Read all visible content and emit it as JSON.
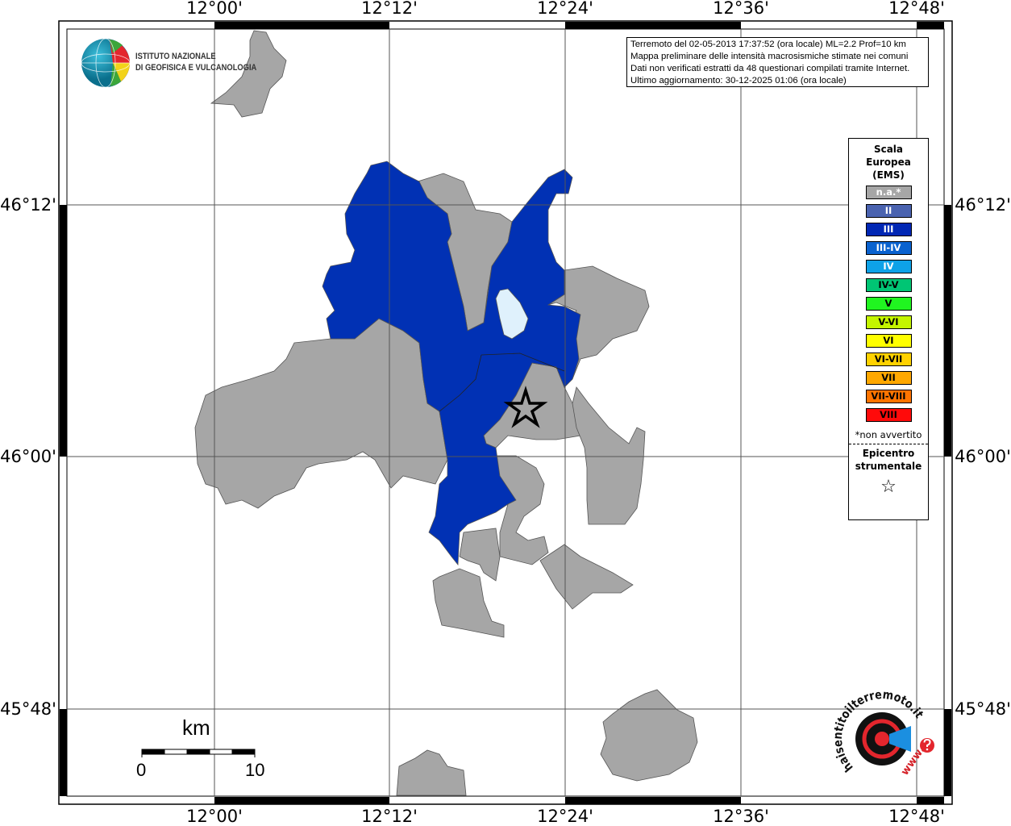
{
  "map": {
    "lon_labels": [
      "12°00'",
      "12°12'",
      "12°24'",
      "12°36'",
      "12°48'"
    ],
    "lat_labels": [
      "46°12'",
      "46°00'",
      "45°48'"
    ],
    "colors": {
      "not_felt": "#a6a6a6",
      "intensity_III": "#0131b4",
      "lake": "#dff1fc",
      "background": "#ffffff"
    },
    "epicenter_icon": "star-icon"
  },
  "info": {
    "line1": "Terremoto del 02-05-2013 17:37:52 (ora locale) ML=2.2 Prof=10 km",
    "line2": "Mappa preliminare delle intensità macrosismiche stimate nei comuni",
    "line3": "Dati non verificati estratti da 48 questionari compilati tramite Internet.",
    "line4": "Ultimo aggiornamento: 30-12-2025 01:06 (ora locale)"
  },
  "legend": {
    "title1": "Scala",
    "title2": "Europea",
    "title3": "(EMS)",
    "items": [
      {
        "label": "n.a.*",
        "color": "#a6a6a6",
        "text_color": "#ffffff"
      },
      {
        "label": "II",
        "color": "#4a63b0",
        "text_color": "#ffffff"
      },
      {
        "label": "III",
        "color": "#0127b4",
        "text_color": "#ffffff"
      },
      {
        "label": "III-IV",
        "color": "#0a62cf",
        "text_color": "#ffffff"
      },
      {
        "label": "IV",
        "color": "#0ea2e8",
        "text_color": "#ffffff"
      },
      {
        "label": "IV-V",
        "color": "#00c574",
        "text_color": "#000000"
      },
      {
        "label": "V",
        "color": "#20f520",
        "text_color": "#000000"
      },
      {
        "label": "V-VI",
        "color": "#c4f500",
        "text_color": "#000000"
      },
      {
        "label": "VI",
        "color": "#ffff00",
        "text_color": "#000000"
      },
      {
        "label": "VI-VII",
        "color": "#ffd200",
        "text_color": "#000000"
      },
      {
        "label": "VII",
        "color": "#ffa800",
        "text_color": "#000000"
      },
      {
        "label": "VII-VIII",
        "color": "#ff7400",
        "text_color": "#000000"
      },
      {
        "label": "VIII",
        "color": "#ff0a0a",
        "text_color": "#000000"
      }
    ],
    "note": "*non avvertito",
    "epicenter1": "Epicentro",
    "epicenter2": "strumentale",
    "epicenter_symbol": "☆"
  },
  "scalebar": {
    "unit": "km",
    "min": "0",
    "max": "10"
  },
  "logos": {
    "ingv_line1": "ISTITUTO NAZIONALE",
    "ingv_line2": "DI GEOFISICA E VULCANOLOGIA",
    "hsit_text": "haisentitoilterremoto.it",
    "hsit_www": "www."
  }
}
